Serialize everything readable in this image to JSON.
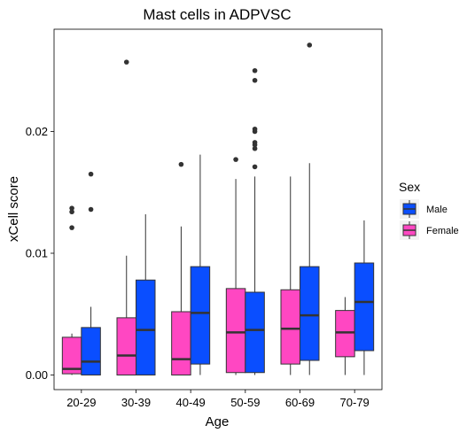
{
  "chart_data": {
    "type": "boxplot",
    "title": "Mast cells in ADPVSC",
    "xlabel": "Age",
    "ylabel": "xCell score",
    "ylim": [
      -0.0012,
      0.0284
    ],
    "yticks": [
      0.0,
      0.01,
      0.02
    ],
    "ytick_labels": [
      "0.00",
      "0.01",
      "0.02"
    ],
    "categories": [
      "20-29",
      "30-39",
      "40-49",
      "50-59",
      "60-69",
      "70-79"
    ],
    "grid": false,
    "legend": {
      "title": "Sex",
      "placement": "right"
    },
    "series": [
      {
        "name": "Female",
        "color": "#FF47C2",
        "boxes": [
          {
            "q1": 0.0001,
            "median": 0.0005,
            "q3": 0.0031,
            "whisker_low": 0.0,
            "whisker_high": 0.0034,
            "outliers": [
              0.0121,
              0.0134,
              0.0137
            ]
          },
          {
            "q1": 0.0,
            "median": 0.0016,
            "q3": 0.0047,
            "whisker_low": 0.0,
            "whisker_high": 0.0098,
            "outliers": [
              0.0257
            ]
          },
          {
            "q1": 0.0,
            "median": 0.0013,
            "q3": 0.0052,
            "whisker_low": 0.0,
            "whisker_high": 0.0122,
            "outliers": [
              0.0173
            ]
          },
          {
            "q1": 0.0002,
            "median": 0.0035,
            "q3": 0.0071,
            "whisker_low": 0.0,
            "whisker_high": 0.0161,
            "outliers": [
              0.0177
            ]
          },
          {
            "q1": 0.0009,
            "median": 0.0038,
            "q3": 0.007,
            "whisker_low": 0.0,
            "whisker_high": 0.0163,
            "outliers": []
          },
          {
            "q1": 0.0015,
            "median": 0.0035,
            "q3": 0.0053,
            "whisker_low": 0.0,
            "whisker_high": 0.0064,
            "outliers": []
          }
        ]
      },
      {
        "name": "Male",
        "color": "#0A4EFF",
        "boxes": [
          {
            "q1": 0.0,
            "median": 0.0011,
            "q3": 0.0039,
            "whisker_low": 0.0,
            "whisker_high": 0.0056,
            "outliers": [
              0.0136,
              0.0165
            ]
          },
          {
            "q1": 0.0,
            "median": 0.0037,
            "q3": 0.0078,
            "whisker_low": 0.0,
            "whisker_high": 0.0132,
            "outliers": []
          },
          {
            "q1": 0.0009,
            "median": 0.0051,
            "q3": 0.0089,
            "whisker_low": 0.0,
            "whisker_high": 0.0181,
            "outliers": []
          },
          {
            "q1": 0.0002,
            "median": 0.0037,
            "q3": 0.0068,
            "whisker_low": 0.0,
            "whisker_high": 0.0163,
            "outliers": [
              0.0171,
              0.0186,
              0.0189,
              0.0191,
              0.02,
              0.0202,
              0.0242,
              0.025
            ]
          },
          {
            "q1": 0.0012,
            "median": 0.0049,
            "q3": 0.0089,
            "whisker_low": 0.0,
            "whisker_high": 0.0174,
            "outliers": [
              0.0271
            ]
          },
          {
            "q1": 0.002,
            "median": 0.006,
            "q3": 0.0092,
            "whisker_low": 0.0,
            "whisker_high": 0.0127,
            "outliers": []
          }
        ]
      }
    ]
  }
}
